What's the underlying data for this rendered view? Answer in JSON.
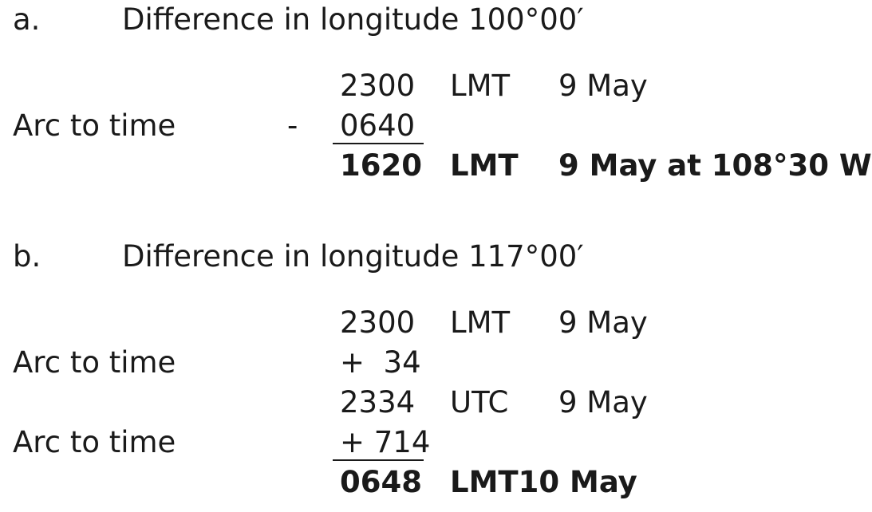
{
  "part_a": {
    "letter": "a.",
    "heading": "Difference in longitude 100°00′",
    "row1": {
      "value": "2300",
      "zone": "LMT",
      "date": "9 May"
    },
    "row2": {
      "label": "Arc to time",
      "operator": "-",
      "value": "0640"
    },
    "result": {
      "value": "1620",
      "zone": "LMT",
      "date": "9 May at 108°30 W"
    }
  },
  "part_b": {
    "letter": "b.",
    "heading": "Difference in longitude 117°00′",
    "row1": {
      "value": "2300",
      "zone": "LMT",
      "date": "9 May"
    },
    "row2": {
      "label": "Arc to time",
      "value": "+  34"
    },
    "row3": {
      "value": "2334",
      "zone": "UTC",
      "date": "9 May"
    },
    "row4": {
      "label": "Arc to time",
      "value": "+ 714"
    },
    "result": {
      "value": "0648",
      "zone_date": "LMT10 May"
    }
  }
}
